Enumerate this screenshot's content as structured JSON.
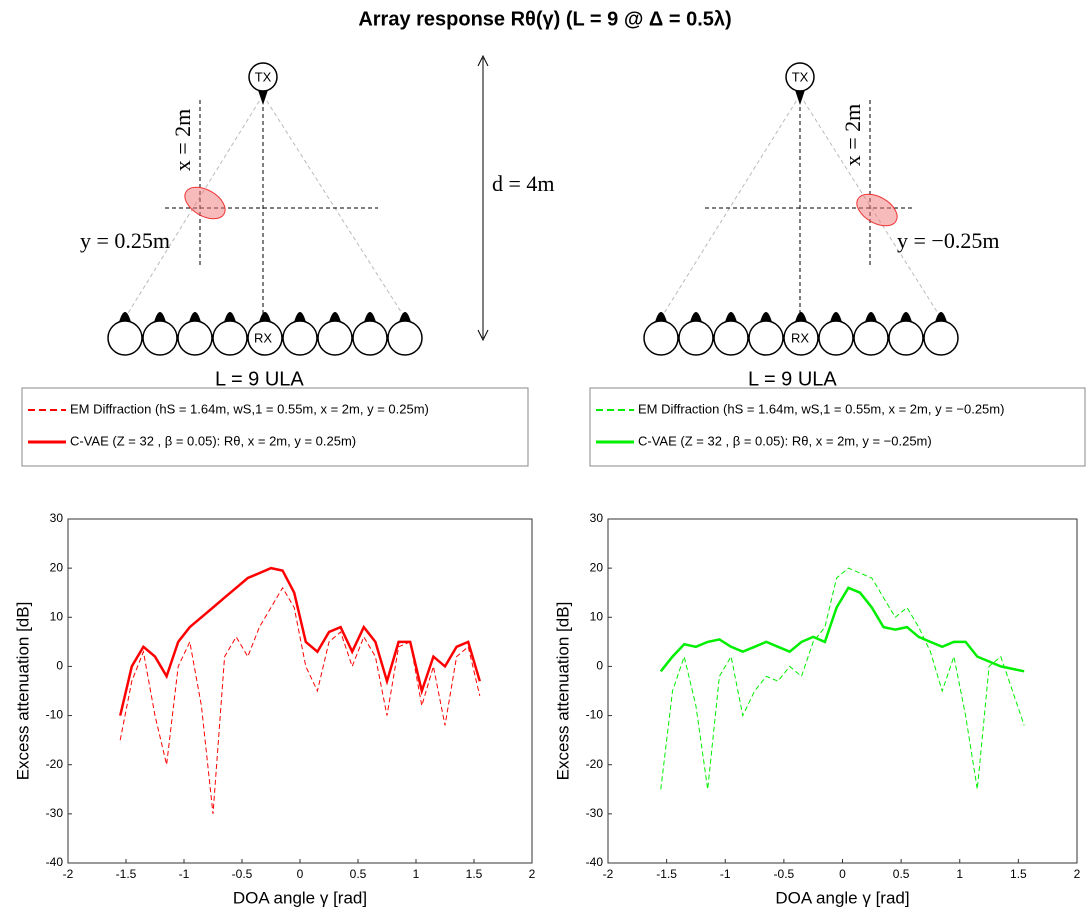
{
  "title": "Array response Rθ(γ) (L = 9 @ Δ = 0.5λ)",
  "d_label": "d = 4m",
  "diagrams": [
    {
      "tx": "TX",
      "rx": "RX",
      "x_label": "x = 2m",
      "y_label": "y = 0.25m",
      "array_label": "L = 9 ULA"
    },
    {
      "tx": "TX",
      "rx": "RX",
      "x_label": "x = 2m",
      "y_label": "y = −0.25m",
      "array_label": "L = 9 ULA"
    }
  ],
  "chart_data": [
    {
      "type": "line",
      "xlabel": "DOA angle γ  [rad]",
      "ylabel": "Excess attenuation [dB]",
      "xlim": [
        -2,
        2
      ],
      "ylim": [
        -40,
        30
      ],
      "xticks": [
        -2,
        -1.5,
        -1,
        -0.5,
        0,
        0.5,
        1,
        1.5,
        2
      ],
      "yticks": [
        -40,
        -30,
        -20,
        -10,
        0,
        10,
        20,
        30
      ],
      "legend": "top",
      "x": [
        -1.55,
        -1.45,
        -1.35,
        -1.25,
        -1.15,
        -1.05,
        -0.95,
        -0.85,
        -0.75,
        -0.65,
        -0.55,
        -0.45,
        -0.35,
        -0.25,
        -0.15,
        -0.05,
        0.05,
        0.15,
        0.25,
        0.35,
        0.45,
        0.55,
        0.65,
        0.75,
        0.85,
        0.95,
        1.05,
        1.15,
        1.25,
        1.35,
        1.45,
        1.55
      ],
      "series": [
        {
          "name": "EM Diffraction (hS = 1.64m, wS,1 = 0.55m, x = 2m, y = 0.25m)",
          "color": "#ff0000",
          "linestyle": "dashed",
          "values": [
            -15,
            -3,
            3,
            -10,
            -20,
            0,
            5,
            -8,
            -30,
            2,
            6,
            2,
            8,
            12,
            16,
            12,
            0,
            -5,
            5,
            7,
            0,
            6,
            2,
            -10,
            4,
            5,
            -8,
            0,
            -12,
            2,
            4,
            -6
          ]
        },
        {
          "name": "C-VAE (Z = 32 , β = 0.05): Rθ,  x = 2m, y = 0.25m)",
          "color": "#ff0000",
          "linestyle": "solid",
          "values": [
            -10,
            0,
            4,
            2,
            -2,
            5,
            8,
            10,
            12,
            14,
            16,
            18,
            19,
            20,
            19.5,
            15,
            5,
            3,
            7,
            8,
            3,
            8,
            5,
            -3,
            5,
            5,
            -5,
            2,
            0,
            4,
            5,
            -3
          ]
        }
      ]
    },
    {
      "type": "line",
      "xlabel": "DOA angle γ  [rad]",
      "ylabel": "Excess attenuation [dB]",
      "xlim": [
        -2,
        2
      ],
      "ylim": [
        -40,
        30
      ],
      "xticks": [
        -2,
        -1.5,
        -1,
        -0.5,
        0,
        0.5,
        1,
        1.5,
        2
      ],
      "yticks": [
        -40,
        -30,
        -20,
        -10,
        0,
        10,
        20,
        30
      ],
      "legend": "top",
      "x": [
        -1.55,
        -1.45,
        -1.35,
        -1.25,
        -1.15,
        -1.05,
        -0.95,
        -0.85,
        -0.75,
        -0.65,
        -0.55,
        -0.45,
        -0.35,
        -0.25,
        -0.15,
        -0.05,
        0.05,
        0.15,
        0.25,
        0.35,
        0.45,
        0.55,
        0.65,
        0.75,
        0.85,
        0.95,
        1.05,
        1.15,
        1.25,
        1.35,
        1.45,
        1.55
      ],
      "series": [
        {
          "name": "EM Diffraction (hS = 1.64m, wS,1 = 0.55m, x = 2m, y = −0.25m)",
          "color": "#00ee00",
          "linestyle": "dashed",
          "values": [
            -25,
            -5,
            2,
            -8,
            -25,
            -2,
            2,
            -10,
            -5,
            -2,
            -3,
            0,
            -2,
            5,
            8,
            18,
            20,
            19,
            18,
            14,
            10,
            12,
            8,
            3,
            -5,
            2,
            -10,
            -25,
            0,
            2,
            -5,
            -12
          ]
        },
        {
          "name": "C-VAE (Z = 32 , β = 0.05): Rθ,  x = 2m, y = −0.25m)",
          "color": "#00ee00",
          "linestyle": "solid",
          "values": [
            -1,
            2,
            4.5,
            4,
            5,
            5.5,
            4,
            3,
            4,
            5,
            4,
            3,
            5,
            6,
            5,
            12,
            16,
            15,
            12,
            8,
            7.5,
            8,
            6,
            5,
            4,
            5,
            5,
            2,
            1,
            0,
            -0.5,
            -1
          ]
        }
      ]
    }
  ]
}
